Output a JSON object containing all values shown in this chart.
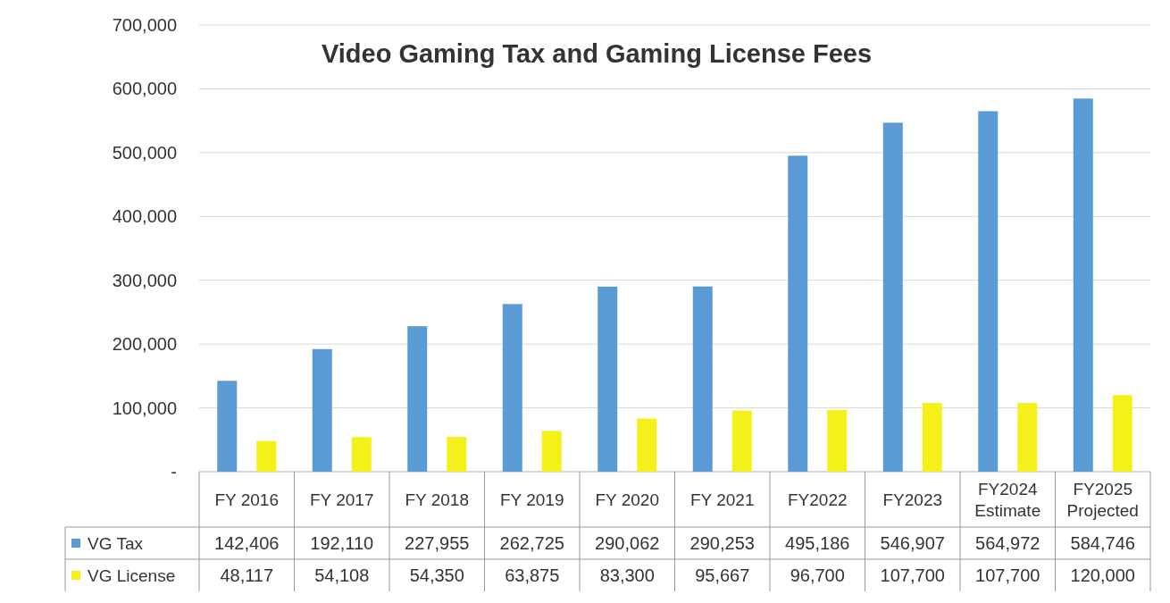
{
  "chart_data": {
    "type": "bar",
    "title": "Video Gaming Tax and Gaming License Fees",
    "categories": [
      "FY 2016",
      "FY 2017",
      "FY 2018",
      "FY 2019",
      "FY 2020",
      "FY 2021",
      "FY2022",
      "FY2023",
      "FY2024 Estimate",
      "FY2025 Projected"
    ],
    "series": [
      {
        "name": "VG Tax",
        "color": "#5b9bd5",
        "values": [
          142406,
          192110,
          227955,
          262725,
          290062,
          290253,
          495186,
          546907,
          564972,
          584746
        ],
        "value_labels": [
          "142,406",
          "192,110",
          "227,955",
          "262,725",
          "290,062",
          "290,253",
          "495,186",
          "546,907",
          "564,972",
          "584,746"
        ]
      },
      {
        "name": "VG License",
        "color": "#f5f019",
        "values": [
          48117,
          54108,
          54350,
          63875,
          83300,
          95667,
          96700,
          107700,
          107700,
          120000
        ],
        "value_labels": [
          "48,117",
          "54,108",
          "54,350",
          "63,875",
          "83,300",
          "95,667",
          "96,700",
          "107,700",
          "107,700",
          "120,000"
        ]
      }
    ],
    "ylim": [
      0,
      700000
    ],
    "yticks": [
      {
        "value": 0,
        "label": "-"
      },
      {
        "value": 100000,
        "label": "100,000"
      },
      {
        "value": 200000,
        "label": "200,000"
      },
      {
        "value": 300000,
        "label": "300,000"
      },
      {
        "value": 400000,
        "label": "400,000"
      },
      {
        "value": 500000,
        "label": "500,000"
      },
      {
        "value": 600000,
        "label": "600,000"
      },
      {
        "value": 700000,
        "label": "700,000"
      }
    ],
    "grid": "y",
    "legend": "bottom"
  }
}
